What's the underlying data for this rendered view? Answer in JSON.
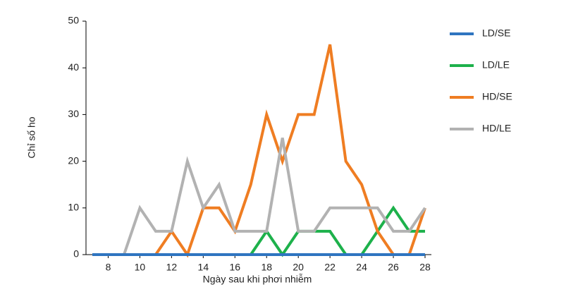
{
  "chart_data": {
    "type": "line",
    "x_label": "Ngày sau khi phơi nhiễm",
    "y_label": "Chỉ số ho",
    "x": [
      7,
      8,
      9,
      10,
      11,
      12,
      13,
      14,
      15,
      16,
      17,
      18,
      19,
      20,
      21,
      22,
      23,
      24,
      25,
      26,
      27,
      28
    ],
    "series": [
      {
        "name": "LD/SE",
        "color": "#2f75c0",
        "values": [
          0,
          0,
          0,
          0,
          0,
          0,
          0,
          0,
          0,
          0,
          0,
          0,
          0,
          0,
          0,
          0,
          0,
          0,
          0,
          0,
          0,
          0
        ]
      },
      {
        "name": "LD/LE",
        "color": "#1db14b",
        "values": [
          null,
          null,
          null,
          null,
          null,
          null,
          null,
          null,
          null,
          null,
          0,
          5,
          0,
          5,
          5,
          5,
          0,
          0,
          5,
          10,
          5,
          5
        ]
      },
      {
        "name": "HD/SE",
        "color": "#ef7d22",
        "values": [
          null,
          null,
          null,
          null,
          0,
          5,
          0,
          10,
          10,
          5,
          15,
          30,
          20,
          30,
          30,
          45,
          20,
          15,
          5,
          0,
          0,
          10
        ]
      },
      {
        "name": "HD/LE",
        "color": "#b2b2b2",
        "values": [
          null,
          null,
          0,
          10,
          5,
          5,
          20,
          10,
          15,
          5,
          5,
          5,
          25,
          5,
          5,
          10,
          10,
          10,
          10,
          5,
          5,
          10
        ]
      }
    ],
    "xlim": [
      6.6,
      28.4
    ],
    "xticks": [
      8,
      10,
      12,
      14,
      16,
      18,
      20,
      22,
      24,
      26,
      28
    ],
    "ylim": [
      0,
      50
    ],
    "yticks": [
      0,
      10,
      20,
      30,
      40,
      50
    ],
    "legend": "right"
  }
}
